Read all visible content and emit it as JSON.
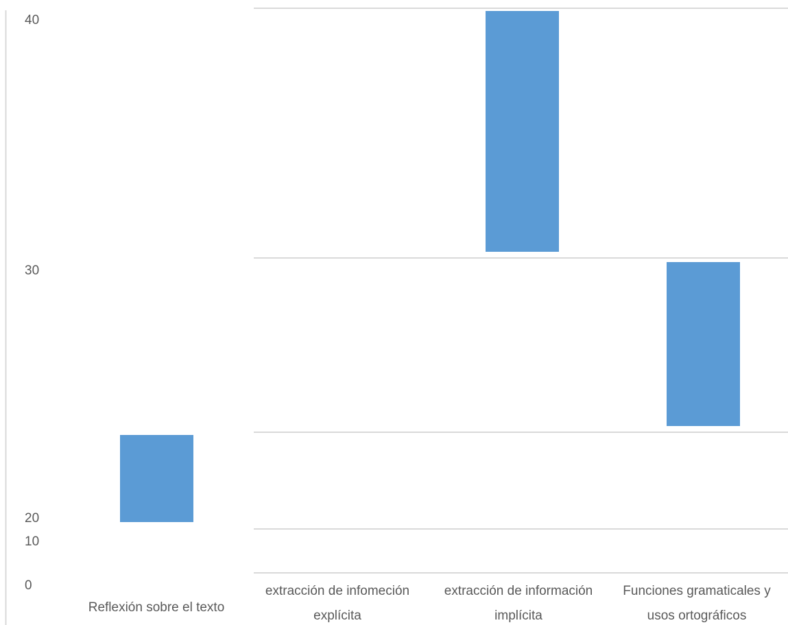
{
  "chart_data": {
    "type": "bar",
    "title": "",
    "xlabel": "",
    "ylabel": "",
    "y_tick_labels": [
      "40",
      "30",
      "20",
      "10",
      "0"
    ],
    "categories": [
      [
        "Reflexión sobre el texto"
      ],
      [
        "extracción de infomeción",
        "explícita"
      ],
      [
        "extracción de información",
        "implícita"
      ],
      [
        "Funciones gramaticales y",
        "usos ortográficos"
      ]
    ],
    "bar_color": "#5b9bd5",
    "grid": true,
    "legend": "none"
  }
}
